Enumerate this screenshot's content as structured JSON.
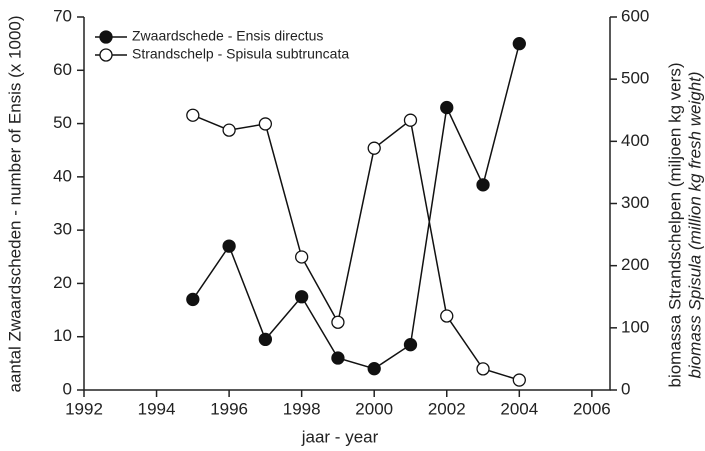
{
  "chart_data": {
    "type": "line",
    "x": [
      1995,
      1996,
      1997,
      1998,
      1999,
      2000,
      2001,
      2002,
      2003,
      2004
    ],
    "series": [
      {
        "name": "Zwaardschede - Ensis directus",
        "color": "#111111",
        "marker": "filled",
        "axis": "y",
        "values": [
          17,
          27,
          9.5,
          17.5,
          6,
          4,
          8.5,
          53,
          38.5,
          65
        ]
      },
      {
        "name": "Strandschelp - Spisula subtruncata",
        "color": "#111111",
        "marker": "open",
        "axis": "y2",
        "values": [
          442,
          418,
          428,
          214,
          109,
          389,
          434,
          119,
          34,
          16
        ]
      }
    ],
    "xlabel": "jaar - year",
    "ylabel": "aantal Zwaardscheden - number of Ensis (x 1000)",
    "y2label": [
      "biomassa Strandschelpen (miljoen kg vers)",
      "biomass Spisula (million kg fresh weight)"
    ],
    "xlim": [
      1992,
      2006.5
    ],
    "xticks": [
      1992,
      1994,
      1996,
      1998,
      2000,
      2002,
      2004,
      2006
    ],
    "ylim": [
      0,
      70
    ],
    "yticks": [
      0,
      10,
      20,
      30,
      40,
      50,
      60,
      70
    ],
    "y2lim": [
      0,
      600
    ],
    "y2ticks": [
      0,
      100,
      200,
      300,
      400,
      500,
      600
    ],
    "grid": false,
    "legend": "upper left"
  }
}
